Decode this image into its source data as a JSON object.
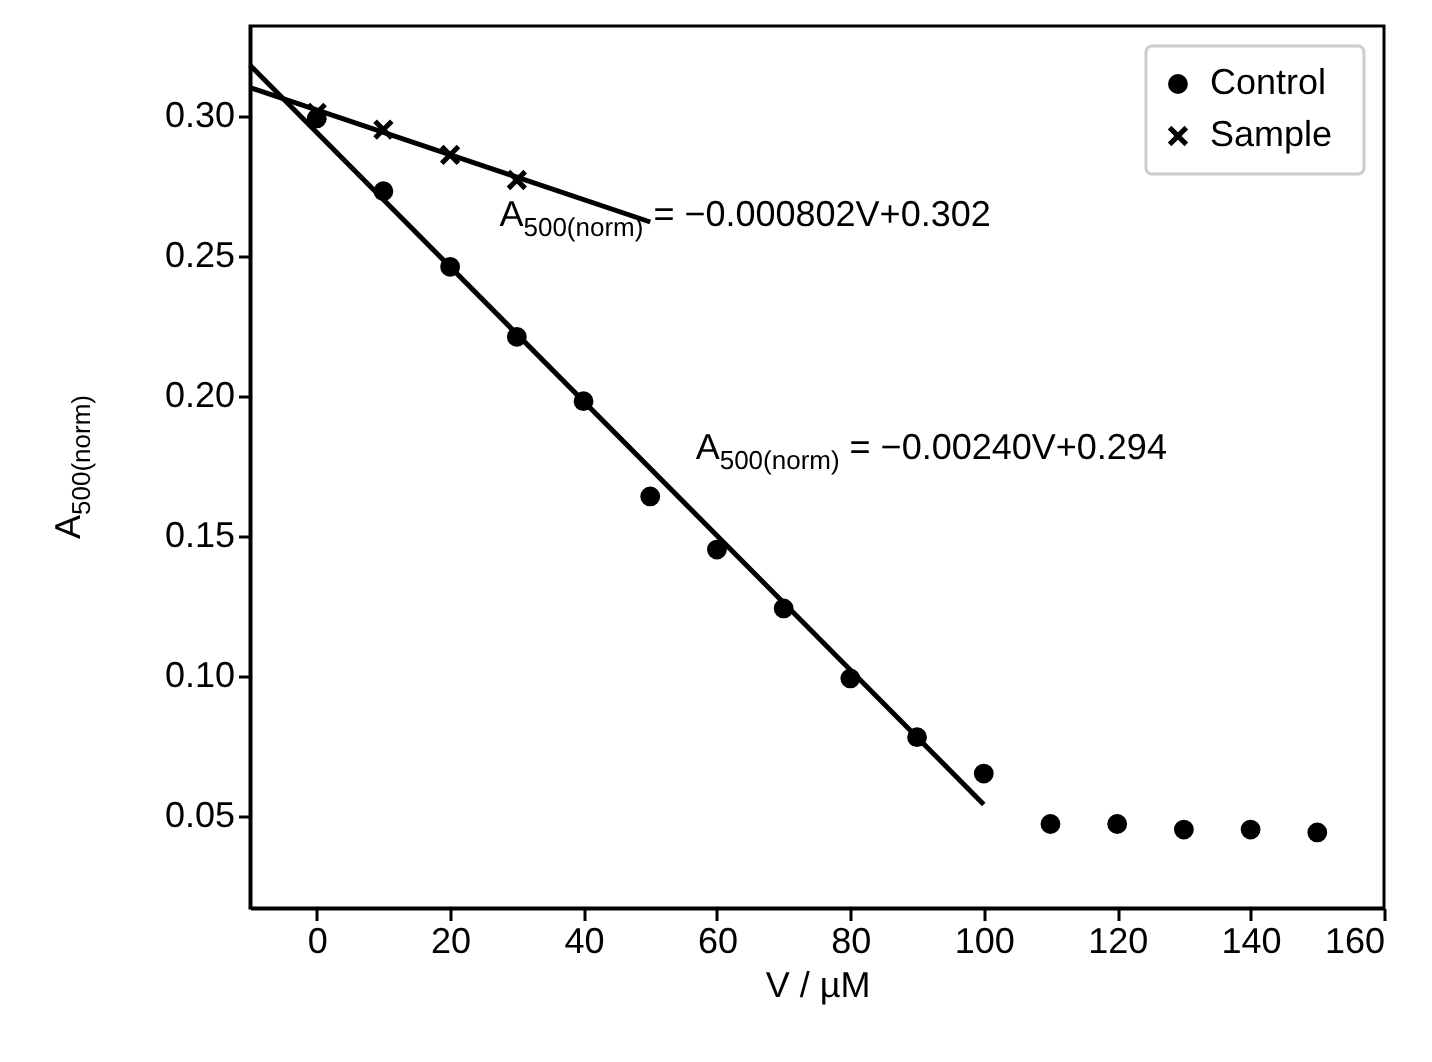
{
  "chart_data": {
    "type": "scatter",
    "xlabel": "V / µM",
    "ylabel": "A$_{500(norm)}$",
    "xlim": [
      -10,
      160
    ],
    "ylim": [
      0.017,
      0.332
    ],
    "xticks": [
      0,
      20,
      40,
      60,
      80,
      100,
      120,
      140,
      160
    ],
    "yticks": [
      {
        "value": 0.05,
        "label": "0.05"
      },
      {
        "value": 0.1,
        "label": "0.10"
      },
      {
        "value": 0.15,
        "label": "0.15"
      },
      {
        "value": 0.2,
        "label": "0.20"
      },
      {
        "value": 0.25,
        "label": "0.25"
      },
      {
        "value": 0.3,
        "label": "0.30"
      }
    ],
    "grid": false,
    "legend": "top right",
    "series": [
      {
        "name": "Control",
        "marker": "circle",
        "color": "#000000",
        "x": [
          0,
          10,
          20,
          30,
          40,
          50,
          60,
          70,
          80,
          90,
          100,
          110,
          120,
          130,
          140,
          150
        ],
        "values": [
          0.299,
          0.273,
          0.246,
          0.221,
          0.198,
          0.164,
          0.145,
          0.124,
          0.099,
          0.078,
          0.065,
          0.047,
          0.047,
          0.045,
          0.045,
          0.044
        ]
      },
      {
        "name": "Sample",
        "marker": "cross",
        "color": "#000000",
        "x": [
          0,
          10,
          20,
          30
        ],
        "values": [
          0.301,
          0.295,
          0.286,
          0.277
        ]
      },
      {
        "type": "line",
        "color": "#000000",
        "x": [
          -10,
          100
        ],
        "values": [
          0.318,
          0.054
        ]
      },
      {
        "type": "line",
        "color": "#000000",
        "x": [
          -10,
          50
        ],
        "values": [
          0.31,
          0.262
        ]
      }
    ],
    "annotations": [
      "A$_{500(norm)}$ = −0.000802V+0.302",
      "A$_{500(norm)}$ = −0.00240V+0.294"
    ]
  }
}
